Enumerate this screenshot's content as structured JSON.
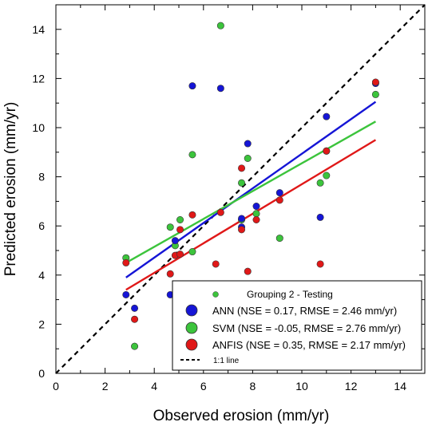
{
  "chart_data": {
    "type": "scatter",
    "xlabel": "Observed erosion (mm/yr)",
    "ylabel": "Predicted erosion (mm/yr)",
    "xlim": [
      0,
      15
    ],
    "ylim": [
      0,
      15
    ],
    "xticks": [
      "0",
      "2",
      "4",
      "6",
      "8",
      "10",
      "12",
      "14"
    ],
    "yticks": [
      "0",
      "2",
      "4",
      "6",
      "8",
      "10",
      "12",
      "14"
    ],
    "legend": {
      "title": "Grouping 2 - Testing",
      "placement": "bottom-right",
      "entries": [
        {
          "label": "ANN (NSE = 0.17, RMSE = 2.46 mm/yr)",
          "color": "#1515d6"
        },
        {
          "label": "SVM (NSE = -0.05, RMSE = 2.76 mm/yr)",
          "color": "#3cc43c"
        },
        {
          "label": "ANFIS (NSE = 0.35, RMSE = 2.17 mm/yr)",
          "color": "#e01818"
        },
        {
          "label": "1:1 line",
          "color": "#000000",
          "style": "dashed"
        }
      ]
    },
    "series": [
      {
        "name": "ANN",
        "color": "#1515d6",
        "points": [
          [
            2.85,
            3.2
          ],
          [
            3.2,
            2.65
          ],
          [
            4.65,
            3.2
          ],
          [
            4.85,
            5.4
          ],
          [
            5.55,
            11.7
          ],
          [
            6.7,
            11.6
          ],
          [
            7.55,
            5.95
          ],
          [
            7.55,
            6.3
          ],
          [
            7.8,
            9.35
          ],
          [
            8.15,
            6.8
          ],
          [
            9.1,
            7.35
          ],
          [
            10.75,
            6.35
          ],
          [
            11.0,
            10.45
          ],
          [
            13.0,
            11.8
          ]
        ],
        "fit": [
          [
            2.85,
            3.9
          ],
          [
            13.0,
            11.05
          ]
        ]
      },
      {
        "name": "SVM",
        "color": "#3cc43c",
        "points": [
          [
            2.85,
            4.7
          ],
          [
            3.2,
            1.1
          ],
          [
            4.65,
            5.95
          ],
          [
            4.85,
            5.2
          ],
          [
            5.05,
            6.25
          ],
          [
            5.55,
            8.9
          ],
          [
            5.55,
            4.95
          ],
          [
            6.7,
            14.15
          ],
          [
            7.55,
            7.75
          ],
          [
            7.55,
            6.25
          ],
          [
            7.8,
            8.75
          ],
          [
            8.15,
            6.5
          ],
          [
            9.1,
            5.5
          ],
          [
            10.75,
            7.75
          ],
          [
            11.0,
            8.05
          ],
          [
            11.0,
            9.05
          ],
          [
            13.0,
            11.35
          ]
        ],
        "fit": [
          [
            2.85,
            4.5
          ],
          [
            13.0,
            10.25
          ]
        ]
      },
      {
        "name": "ANFIS",
        "color": "#e01818",
        "points": [
          [
            2.85,
            4.5
          ],
          [
            3.2,
            2.2
          ],
          [
            4.65,
            4.05
          ],
          [
            4.85,
            4.8
          ],
          [
            5.05,
            5.85
          ],
          [
            5.05,
            4.85
          ],
          [
            5.55,
            6.45
          ],
          [
            6.5,
            4.45
          ],
          [
            6.7,
            6.55
          ],
          [
            7.55,
            8.35
          ],
          [
            7.55,
            5.85
          ],
          [
            7.8,
            4.15
          ],
          [
            8.15,
            6.25
          ],
          [
            9.1,
            7.05
          ],
          [
            10.75,
            4.45
          ],
          [
            11.0,
            9.05
          ],
          [
            13.0,
            11.85
          ]
        ],
        "fit": [
          [
            2.85,
            3.4
          ],
          [
            13.0,
            9.5
          ]
        ]
      }
    ],
    "reference_line": {
      "name": "1:1 line",
      "points": [
        [
          0,
          0
        ],
        [
          15,
          15
        ]
      ]
    }
  }
}
